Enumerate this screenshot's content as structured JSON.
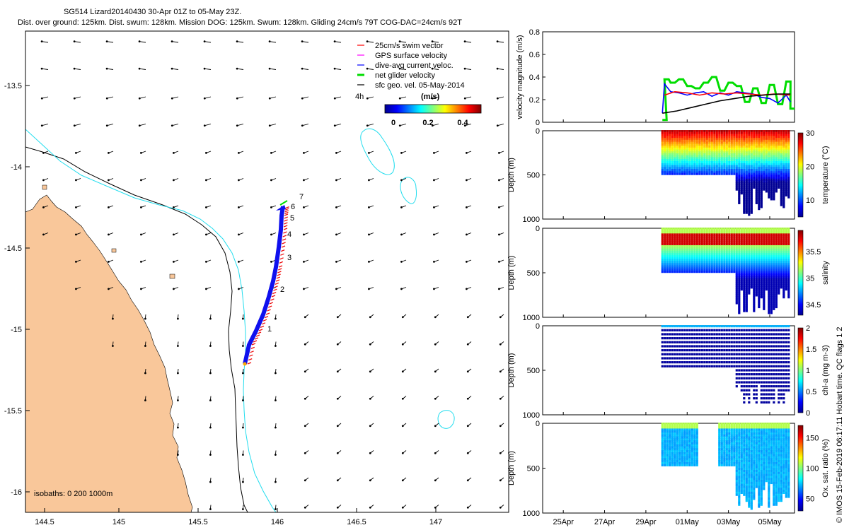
{
  "header": {
    "line1": "SG514 Lizard20140430 30-Apr 01Z to 05-May 23Z.",
    "line2": "Dist. over ground: 125km. Dist. swum: 128km. Mission DOG: 125km. Swum: 128km. Gliding 24cm/s 79T COG-DAC=24cm/s 92T"
  },
  "footer_note": "© IMOS 15-Feb-2019 06:17:11 Hobart time. QC flags 1 2",
  "colors": {
    "land": "#f9c79a",
    "track_blue": "#1010ee",
    "track_red": "#ee1010",
    "isobath_cyan": "#22ddee",
    "swim": "#ff0000",
    "gps": "#ff00ff",
    "dac": "#0000ff",
    "net": "#00dd00",
    "sfc": "#000000"
  },
  "map": {
    "x_ticks": [
      "144.5",
      "145",
      "145.5",
      "146",
      "146.5",
      "147"
    ],
    "y_ticks": [
      "-13.5",
      "-14",
      "-14.5",
      "-15",
      "-15.5",
      "-16"
    ],
    "isobath_label": "isobaths: 0   200  1000m",
    "track_day_labels": [
      "1",
      "2",
      "3",
      "4",
      "5",
      "6",
      "7"
    ],
    "legend": {
      "items": [
        {
          "key": "swim",
          "label": "25cm/s swim vector"
        },
        {
          "key": "gps",
          "label": "GPS surface velocity"
        },
        {
          "key": "dac",
          "label": "dive-avg current veloc."
        },
        {
          "key": "net",
          "label": "net glider velocity"
        },
        {
          "key": "sfc",
          "label": "sfc geo. vel. 05-May-2014"
        }
      ],
      "cbar_title": "(m/s)",
      "cbar_ticks": [
        "0",
        "0.2",
        "0.4"
      ],
      "hours_label": "4h"
    }
  },
  "chart_data": [
    {
      "type": "line",
      "title": "",
      "ylabel": "velocity magnitude (m/s)",
      "ylim": [
        0,
        0.8
      ],
      "y_ticks": [
        "0",
        "0.2",
        "0.4",
        "0.6",
        "0.8"
      ],
      "x_dates": [
        "25Apr",
        "27Apr",
        "29Apr",
        "01May",
        "03May",
        "05May"
      ],
      "series": [
        {
          "name": "net glider velocity",
          "color": "#00dd00",
          "t": [
            29.8,
            29.9,
            30.2,
            30.6,
            31.0,
            31.4,
            31.8,
            32.2,
            32.6,
            33.0,
            33.4,
            33.8,
            34.2,
            34.6,
            35.0,
            35.4,
            35.8,
            36.0
          ],
          "y": [
            0.02,
            0.38,
            0.35,
            0.38,
            0.32,
            0.3,
            0.35,
            0.4,
            0.28,
            0.35,
            0.32,
            0.18,
            0.3,
            0.17,
            0.33,
            0.16,
            0.36,
            0.12
          ]
        },
        {
          "name": "dive-avg current veloc.",
          "color": "#0000ff",
          "t": [
            29.8,
            29.9,
            30.2,
            30.6,
            31.0,
            31.4,
            31.8,
            32.2,
            32.6,
            33.0,
            33.4,
            33.8,
            34.2,
            34.6,
            35.0,
            35.4,
            35.8,
            36.0
          ],
          "y": [
            0.08,
            0.34,
            0.27,
            0.26,
            0.24,
            0.26,
            0.27,
            0.23,
            0.26,
            0.24,
            0.27,
            0.26,
            0.25,
            0.22,
            0.21,
            0.17,
            0.24,
            0.18
          ]
        },
        {
          "name": "swim vector",
          "color": "#ff0000",
          "t": [
            29.9,
            30.4,
            31.0,
            31.6,
            32.2,
            32.8,
            33.4,
            34.0,
            34.6,
            35.2,
            36.0
          ],
          "y": [
            0.24,
            0.27,
            0.26,
            0.24,
            0.26,
            0.25,
            0.26,
            0.25,
            0.24,
            0.25,
            0.24
          ]
        },
        {
          "name": "sfc geo. vel.",
          "color": "#000000",
          "t": [
            29.8,
            30.5,
            31.2,
            31.9,
            32.6,
            33.3,
            34.0,
            34.7,
            35.4,
            36.0
          ],
          "y": [
            0.08,
            0.1,
            0.13,
            0.16,
            0.19,
            0.21,
            0.23,
            0.24,
            0.25,
            0.25
          ]
        }
      ]
    },
    {
      "type": "scatter",
      "variable": "temperature",
      "ylabel": "Depth (m)",
      "cbar_label": "temperature (°C)",
      "ylim": [
        1000,
        0
      ],
      "y_ticks": [
        "0",
        "500",
        "1000"
      ],
      "cbar_ticks": [
        "30",
        "20",
        "10"
      ],
      "cbar_range": [
        5,
        30
      ],
      "profiles_shallow": {
        "t_start": 29.8,
        "t_end": 33.3,
        "max_depth": 500
      },
      "profiles_deep": {
        "t_start": 33.3,
        "t_end": 36.0,
        "max_depth_range": [
          750,
          980
        ]
      },
      "surface_value": 29,
      "deep_value": 6
    },
    {
      "type": "scatter",
      "variable": "salinity",
      "ylabel": "Depth (m)",
      "cbar_label": "salinity",
      "ylim": [
        1000,
        0
      ],
      "y_ticks": [
        "0",
        "500",
        "1000"
      ],
      "cbar_ticks": [
        "35.5",
        "35",
        "34.5"
      ],
      "cbar_range": [
        34.3,
        35.9
      ]
    },
    {
      "type": "scatter",
      "variable": "chl-a",
      "ylabel": "Depth (m)",
      "cbar_label": "chl-a (mg m-3)",
      "ylim": [
        1000,
        0
      ],
      "y_ticks": [
        "0",
        "500",
        "1000"
      ],
      "cbar_ticks": [
        "2",
        "1.5",
        "1",
        "0.5",
        "0"
      ],
      "cbar_range": [
        0,
        2
      ]
    },
    {
      "type": "scatter",
      "variable": "oxygen",
      "ylabel": "Depth (m)",
      "cbar_label": "Ox. sat. ratio (%)",
      "ylim": [
        1000,
        0
      ],
      "y_ticks": [
        "0",
        "500",
        "1000"
      ],
      "cbar_ticks": [
        "150",
        "100",
        "50"
      ],
      "cbar_range": [
        30,
        170
      ],
      "x_dates": [
        "25Apr",
        "27Apr",
        "29Apr",
        "01May",
        "03May",
        "05May"
      ]
    }
  ]
}
